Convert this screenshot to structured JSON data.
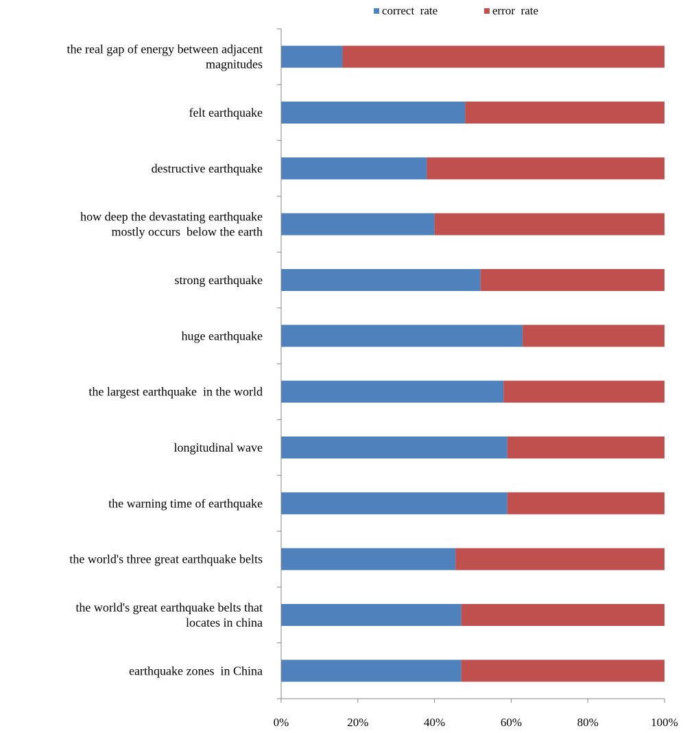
{
  "chart_data": {
    "type": "bar",
    "orientation": "horizontal",
    "stacked": "percent",
    "categories": [
      [
        "the real gap of energy between adjacent",
        "magnitudes"
      ],
      [
        "felt earthquake"
      ],
      [
        "destructive earthquake"
      ],
      [
        "how deep the devastating earthquake",
        "mostly occurs  below the earth"
      ],
      [
        "strong earthquake"
      ],
      [
        "huge earthquake"
      ],
      [
        "the largest earthquake  in the world"
      ],
      [
        "longitudinal wave"
      ],
      [
        "the warning time of earthquake"
      ],
      [
        "the world's three great earthquake belts"
      ],
      [
        "the world's great earthquake belts that",
        "locates in china"
      ],
      [
        "earthquake zones  in China"
      ]
    ],
    "series": [
      {
        "name": "correct  rate",
        "color": "#4F81BD",
        "values": [
          0.16,
          0.48,
          0.38,
          0.4,
          0.52,
          0.63,
          0.58,
          0.59,
          0.59,
          0.455,
          0.47,
          0.47
        ]
      },
      {
        "name": "error  rate",
        "color": "#C0504D",
        "values": [
          0.84,
          0.52,
          0.62,
          0.6,
          0.48,
          0.37,
          0.42,
          0.41,
          0.41,
          0.545,
          0.53,
          0.53
        ]
      }
    ],
    "x_ticks": [
      "0%",
      "20%",
      "40%",
      "60%",
      "80%",
      "100%"
    ],
    "xlim": [
      0,
      1
    ],
    "grid": false,
    "legend_position": "top"
  }
}
